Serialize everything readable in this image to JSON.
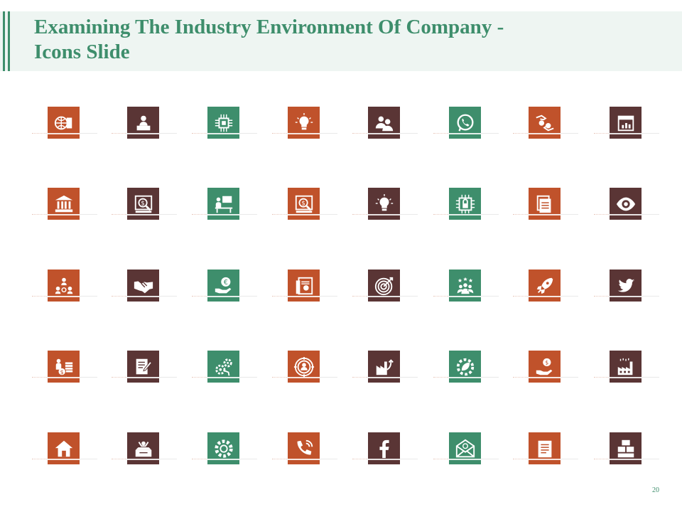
{
  "slide": {
    "title": "Examining The Industry Environment Of Company - Icons Slide",
    "page_number": "20"
  },
  "colors": {
    "orange": "#c0522b",
    "brown": "#5a3535",
    "green": "#3e8e6c",
    "title_band": "#eef5f2"
  },
  "icons": [
    [
      {
        "name": "globe-building-icon",
        "color": "orange"
      },
      {
        "name": "presenter-desk-icon",
        "color": "brown"
      },
      {
        "name": "circuit-chip-icon",
        "color": "green"
      },
      {
        "name": "lightbulb-icon",
        "color": "orange"
      },
      {
        "name": "user-group-icon",
        "color": "brown"
      },
      {
        "name": "whatsapp-icon",
        "color": "green"
      },
      {
        "name": "hands-money-exchange-icon",
        "color": "orange"
      },
      {
        "name": "calendar-chart-icon",
        "color": "brown"
      }
    ],
    [
      {
        "name": "bank-building-icon",
        "color": "orange"
      },
      {
        "name": "money-search-screen-icon",
        "color": "brown"
      },
      {
        "name": "person-at-computer-desk-icon",
        "color": "green"
      },
      {
        "name": "money-search-screen-icon",
        "color": "orange"
      },
      {
        "name": "lightbulb-icon",
        "color": "brown"
      },
      {
        "name": "circuit-lock-icon",
        "color": "green"
      },
      {
        "name": "documents-icon",
        "color": "orange"
      },
      {
        "name": "eye-icon",
        "color": "brown"
      }
    ],
    [
      {
        "name": "team-network-icon",
        "color": "orange"
      },
      {
        "name": "handshake-icon",
        "color": "brown"
      },
      {
        "name": "euro-hand-icon",
        "color": "green"
      },
      {
        "name": "certificate-icon",
        "color": "orange"
      },
      {
        "name": "target-icon",
        "color": "brown"
      },
      {
        "name": "rated-team-icon",
        "color": "green"
      },
      {
        "name": "rocket-icon",
        "color": "orange"
      },
      {
        "name": "twitter-bird-icon",
        "color": "brown"
      }
    ],
    [
      {
        "name": "person-money-stack-icon",
        "color": "orange"
      },
      {
        "name": "document-edit-icon",
        "color": "brown"
      },
      {
        "name": "gears-icon",
        "color": "green"
      },
      {
        "name": "user-target-icon",
        "color": "orange"
      },
      {
        "name": "factory-growth-icon",
        "color": "brown"
      },
      {
        "name": "gear-leaf-icon",
        "color": "green"
      },
      {
        "name": "hand-coin-icon",
        "color": "orange"
      },
      {
        "name": "factory-icon",
        "color": "brown"
      }
    ],
    [
      {
        "name": "home-icon",
        "color": "orange"
      },
      {
        "name": "person-box-icon",
        "color": "brown"
      },
      {
        "name": "gear-icon",
        "color": "green"
      },
      {
        "name": "phone-call-icon",
        "color": "orange"
      },
      {
        "name": "facebook-icon",
        "color": "brown"
      },
      {
        "name": "email-envelope-icon",
        "color": "green"
      },
      {
        "name": "document-list-icon",
        "color": "orange"
      },
      {
        "name": "warehouse-boxes-icon",
        "color": "brown"
      }
    ]
  ]
}
